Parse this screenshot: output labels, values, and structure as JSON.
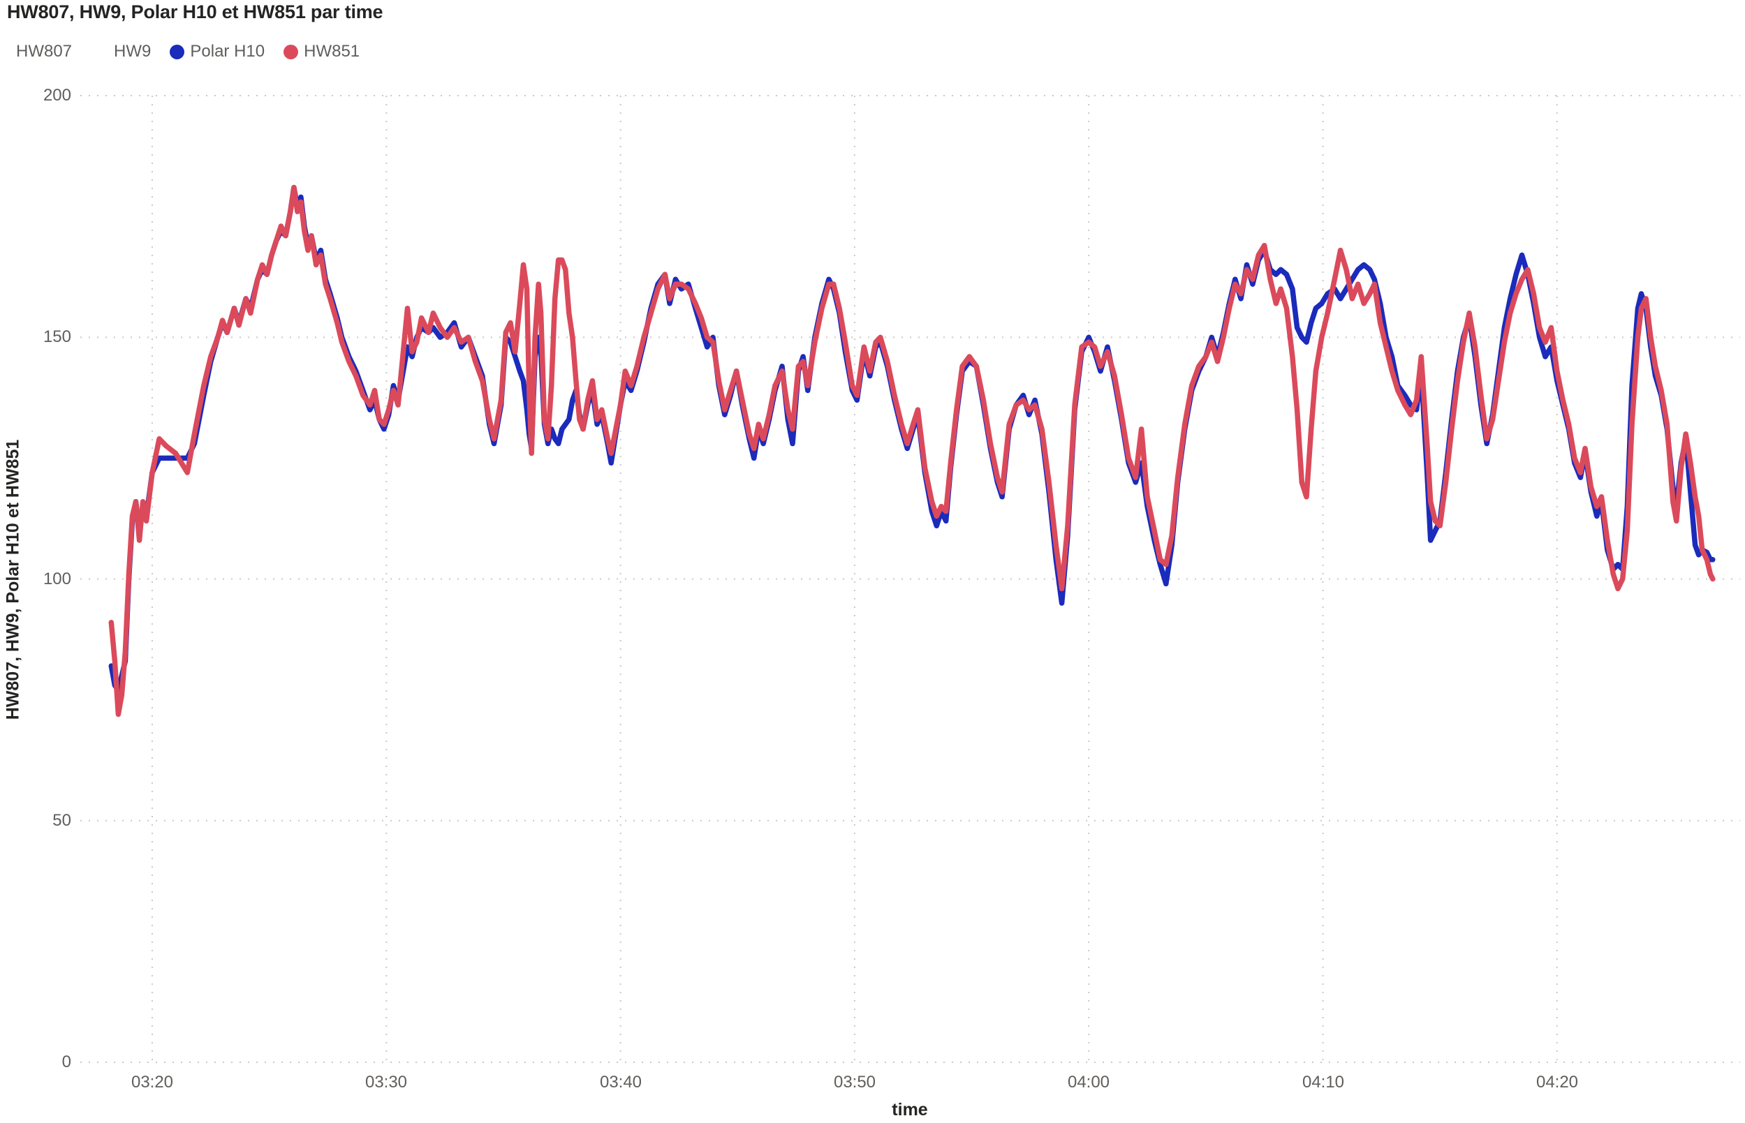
{
  "page_title": "HW807, HW9, Polar H10 et HW851 par time",
  "colors": {
    "polar_h10_blue": "#1B2BBB",
    "hw851_red": "#DB4A5B",
    "grid": "#C9C9C9",
    "tick_text": "#605E5C",
    "title_text": "#252423"
  },
  "chart_data": {
    "type": "line",
    "title": "HW807, HW9, Polar H10 et HW851 par time",
    "xlabel": "time",
    "ylabel": "HW807, HW9, Polar H10 et HW851",
    "legend_position": "top-left",
    "grid": "dotted",
    "ylim": [
      0,
      200
    ],
    "yticks": [
      0,
      50,
      100,
      150,
      200
    ],
    "xticks": [
      {
        "minute": 200,
        "label": "03:20"
      },
      {
        "minute": 210,
        "label": "03:30"
      },
      {
        "minute": 220,
        "label": "03:40"
      },
      {
        "minute": 230,
        "label": "03:50"
      },
      {
        "minute": 240,
        "label": "04:00"
      },
      {
        "minute": 250,
        "label": "04:10"
      },
      {
        "minute": 260,
        "label": "04:20"
      }
    ],
    "legend": [
      {
        "label": "HW807",
        "color": null
      },
      {
        "label": "HW9",
        "color": null
      },
      {
        "label": "Polar H10",
        "color": "#1B2BBB"
      },
      {
        "label": "HW851",
        "color": "#DB4A5B"
      }
    ],
    "x_minutes_after_midnight": [
      198.25,
      198.4,
      198.55,
      198.7,
      198.85,
      199,
      199.15,
      199.3,
      199.45,
      199.6,
      199.75,
      200,
      200.3,
      200.6,
      201,
      201.5,
      201.8,
      202.2,
      202.5,
      202.8,
      203,
      203.2,
      203.5,
      203.7,
      204,
      204.2,
      204.5,
      204.7,
      204.9,
      205.1,
      205.3,
      205.5,
      205.7,
      205.9,
      206.05,
      206.2,
      206.35,
      206.5,
      206.65,
      206.8,
      207,
      207.2,
      207.4,
      207.6,
      207.9,
      208.1,
      208.4,
      208.7,
      209,
      209.3,
      209.5,
      209.7,
      209.9,
      210.1,
      210.3,
      210.5,
      210.9,
      211.1,
      211.3,
      211.5,
      211.8,
      212,
      212.3,
      212.6,
      212.9,
      213.2,
      213.5,
      213.8,
      214.1,
      214.4,
      214.6,
      214.9,
      215.1,
      215.3,
      215.5,
      215.7,
      215.85,
      216,
      216.1,
      216.2,
      216.35,
      216.5,
      216.6,
      216.75,
      216.9,
      217.05,
      217.2,
      217.35,
      217.5,
      217.65,
      217.8,
      217.95,
      218.1,
      218.25,
      218.4,
      218.6,
      218.8,
      219,
      219.2,
      219.45,
      219.6,
      219.8,
      220,
      220.2,
      220.45,
      220.7,
      221,
      221.3,
      221.6,
      221.9,
      222.1,
      222.35,
      222.6,
      222.9,
      223.2,
      223.45,
      223.7,
      223.95,
      224.2,
      224.45,
      224.7,
      224.95,
      225.2,
      225.5,
      225.7,
      225.9,
      226.1,
      226.35,
      226.6,
      226.9,
      227.15,
      227.35,
      227.6,
      227.8,
      228,
      228.3,
      228.6,
      228.9,
      229.1,
      229.35,
      229.6,
      229.9,
      230.1,
      230.4,
      230.65,
      230.9,
      231.1,
      231.4,
      231.7,
      232,
      232.25,
      232.5,
      232.7,
      233,
      233.3,
      233.5,
      233.7,
      233.9,
      234.1,
      234.35,
      234.6,
      234.9,
      235.2,
      235.5,
      235.8,
      236.1,
      236.3,
      236.6,
      236.9,
      237.2,
      237.45,
      237.7,
      238,
      238.3,
      238.6,
      238.85,
      239.1,
      239.4,
      239.7,
      240,
      240.25,
      240.5,
      240.8,
      241.1,
      241.4,
      241.7,
      242,
      242.25,
      242.5,
      242.8,
      243.05,
      243.3,
      243.55,
      243.8,
      244.1,
      244.4,
      244.7,
      245,
      245.25,
      245.5,
      245.75,
      246,
      246.25,
      246.5,
      246.75,
      247,
      247.25,
      247.5,
      247.75,
      248,
      248.2,
      248.45,
      248.7,
      248.9,
      249.1,
      249.3,
      249.5,
      249.7,
      249.95,
      250.2,
      250.5,
      250.75,
      251,
      251.25,
      251.5,
      251.75,
      252,
      252.2,
      252.45,
      252.7,
      252.95,
      253.2,
      253.5,
      253.75,
      254,
      254.2,
      254.45,
      254.6,
      254.8,
      255,
      255.25,
      255.5,
      255.75,
      256,
      256.25,
      256.5,
      256.75,
      257,
      257.25,
      257.5,
      257.75,
      258,
      258.25,
      258.5,
      258.75,
      259,
      259.25,
      259.5,
      259.75,
      260,
      260.25,
      260.5,
      260.75,
      261,
      261.2,
      261.45,
      261.7,
      261.9,
      262.15,
      262.4,
      262.6,
      262.8,
      263,
      263.2,
      263.45,
      263.6,
      263.8,
      264,
      264.2,
      264.45,
      264.7,
      264.95,
      265.1,
      265.3,
      265.5,
      265.7,
      265.9,
      266.05,
      266.2,
      266.4,
      266.55,
      266.65
    ],
    "series": [
      {
        "name": "Polar H10",
        "color": "#1B2BBB",
        "values": [
          82,
          78,
          77,
          80,
          83,
          100,
          112,
          116,
          110,
          115,
          113,
          122,
          125,
          125,
          125,
          125,
          128,
          138,
          145,
          150,
          153,
          151,
          156,
          153,
          158,
          156,
          162,
          164,
          163,
          167,
          170,
          172,
          171,
          176,
          181,
          177,
          179,
          173,
          169,
          171,
          166,
          168,
          162,
          159,
          154,
          150,
          146,
          143,
          139,
          135,
          137,
          133,
          131,
          134,
          140,
          137,
          148,
          146,
          150,
          152,
          151,
          152,
          150,
          151,
          153,
          148,
          150,
          146,
          142,
          132,
          128,
          136,
          150,
          149,
          146,
          143,
          141,
          135,
          130,
          127,
          146,
          150,
          147,
          132,
          128,
          131,
          129,
          128,
          131,
          132,
          133,
          137,
          139,
          134,
          131,
          136,
          139,
          132,
          134,
          128,
          124,
          130,
          136,
          141,
          139,
          143,
          149,
          156,
          161,
          163,
          157,
          162,
          160,
          161,
          156,
          152,
          148,
          150,
          140,
          134,
          138,
          143,
          136,
          129,
          125,
          131,
          128,
          133,
          139,
          144,
          133,
          128,
          143,
          146,
          139,
          150,
          157,
          162,
          160,
          155,
          147,
          139,
          137,
          147,
          142,
          148,
          149,
          144,
          137,
          131,
          127,
          131,
          134,
          122,
          114,
          111,
          114,
          112,
          123,
          134,
          143,
          145,
          144,
          136,
          127,
          120,
          117,
          131,
          136,
          138,
          134,
          137,
          130,
          118,
          104,
          95,
          109,
          135,
          147,
          150,
          147,
          143,
          148,
          141,
          133,
          124,
          120,
          124,
          115,
          108,
          103,
          99,
          107,
          120,
          131,
          139,
          143,
          146,
          150,
          146,
          151,
          157,
          162,
          158,
          165,
          161,
          166,
          168,
          164,
          163,
          164,
          163,
          160,
          152,
          150,
          149,
          153,
          156,
          157,
          159,
          160,
          158,
          160,
          162,
          164,
          165,
          164,
          162,
          157,
          150,
          146,
          140,
          138,
          136,
          135,
          143,
          122,
          108,
          110,
          112,
          122,
          133,
          143,
          150,
          154,
          146,
          136,
          128,
          134,
          143,
          152,
          158,
          163,
          167,
          163,
          157,
          150,
          146,
          148,
          141,
          136,
          131,
          124,
          121,
          126,
          118,
          113,
          116,
          106,
          102,
          103,
          102,
          115,
          140,
          156,
          159,
          156,
          148,
          142,
          138,
          131,
          119,
          115,
          124,
          129,
          118,
          107,
          105,
          106,
          105.5,
          104,
          104
        ]
      },
      {
        "name": "HW851",
        "color": "#DB4A5B",
        "values": [
          91,
          83,
          72,
          76,
          85,
          101,
          113,
          116,
          108,
          116,
          112,
          122,
          129,
          127.5,
          126,
          122,
          130,
          140,
          146,
          150,
          153.5,
          151,
          156,
          152.5,
          158,
          155,
          162,
          165,
          163,
          167,
          170,
          173,
          171,
          176,
          181,
          176,
          178,
          172,
          168,
          171,
          165,
          167,
          161,
          158,
          153,
          149,
          145,
          142,
          138,
          136,
          139,
          133,
          132,
          135,
          139,
          136,
          156,
          147,
          149,
          154,
          151,
          155,
          152,
          150,
          152,
          149,
          150,
          145,
          141,
          133,
          129,
          137,
          151,
          153,
          147,
          157,
          165,
          160,
          139,
          126,
          150,
          161,
          155,
          133,
          129,
          140,
          158,
          166,
          166,
          164,
          155,
          150,
          141,
          133,
          131,
          137,
          141,
          133,
          135,
          129,
          126,
          131,
          136,
          143,
          140,
          144,
          150,
          155,
          160,
          163,
          158,
          161,
          161,
          160,
          157,
          154,
          150,
          149,
          141,
          135,
          139,
          143,
          137,
          130,
          127,
          132,
          129,
          134,
          140,
          143,
          135,
          131,
          144,
          145,
          140,
          149,
          156,
          161,
          161,
          156,
          149,
          140,
          138,
          148,
          143,
          149,
          150,
          145,
          138,
          132,
          128,
          132,
          135,
          123,
          116,
          113,
          115,
          114,
          124,
          135,
          144,
          146,
          144,
          137,
          128,
          121,
          118,
          132,
          136,
          137,
          135,
          136,
          131,
          120,
          107,
          98,
          111,
          136,
          148,
          149,
          148,
          144,
          147,
          142,
          134,
          125,
          121,
          131,
          117,
          110,
          104,
          103,
          109,
          121,
          132,
          140,
          144,
          146,
          149,
          145,
          150,
          156,
          161,
          159,
          164,
          162,
          167,
          169,
          162,
          157,
          160,
          156,
          146,
          135,
          120,
          117,
          131,
          143,
          150,
          155,
          162,
          168,
          164,
          158,
          161,
          157,
          159,
          161,
          153,
          148,
          143,
          139,
          136,
          134,
          137,
          146,
          128,
          116,
          112,
          111,
          120,
          131,
          141,
          149,
          155,
          148,
          138,
          129,
          133,
          141,
          149,
          155,
          159,
          162,
          164,
          159,
          152,
          149,
          152,
          143,
          137,
          132,
          125,
          122,
          127,
          119,
          115,
          117,
          108,
          101,
          98,
          100,
          110,
          132,
          150,
          156,
          158,
          150,
          144,
          139,
          132,
          116,
          112,
          123,
          130,
          124,
          117,
          113,
          106,
          104,
          101,
          100
        ]
      }
    ]
  }
}
